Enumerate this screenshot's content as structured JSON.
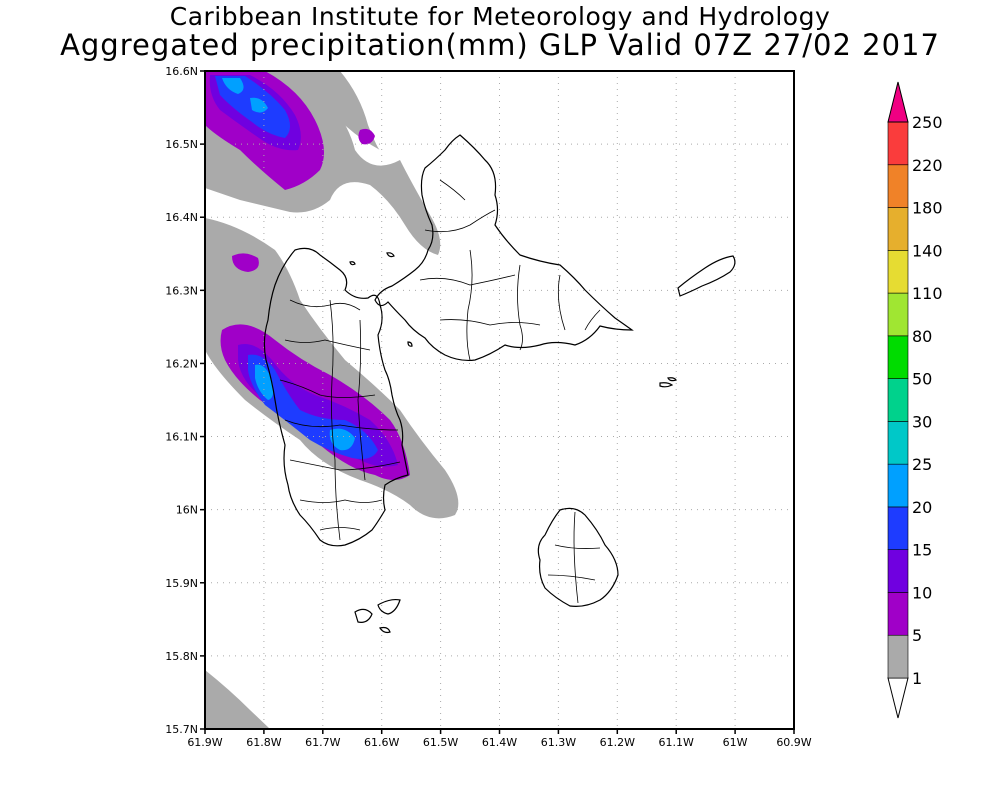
{
  "title_line1": "Caribbean Institute for Meteorology and Hydrology",
  "title_line2": "Aggregated precipitation(mm) GLP Valid 07Z 27/02 2017",
  "map": {
    "lon_min": -61.9,
    "lon_max": -60.9,
    "lat_min": 15.7,
    "lat_max": 16.6,
    "x_ticks": [
      "61.9W",
      "61.8W",
      "61.7W",
      "61.6W",
      "61.5W",
      "61.4W",
      "61.3W",
      "61.2W",
      "61.1W",
      "61W",
      "60.9W"
    ],
    "y_ticks": [
      "16.6N",
      "16.5N",
      "16.4N",
      "16.3N",
      "16.2N",
      "16.1N",
      "16N",
      "15.9N",
      "15.8N",
      "15.7N"
    ],
    "grid": true
  },
  "legend": {
    "levels": [
      "1",
      "5",
      "10",
      "15",
      "20",
      "25",
      "30",
      "50",
      "80",
      "110",
      "140",
      "180",
      "220",
      "250"
    ],
    "colors": [
      "#aaaaaa",
      "#a000c8",
      "#7000e0",
      "#1e3cff",
      "#00a0ff",
      "#00c8c8",
      "#00d28c",
      "#00dc00",
      "#a0e632",
      "#e6dc32",
      "#e6af2d",
      "#f08228",
      "#fa3c3c",
      "#f00082"
    ]
  }
}
